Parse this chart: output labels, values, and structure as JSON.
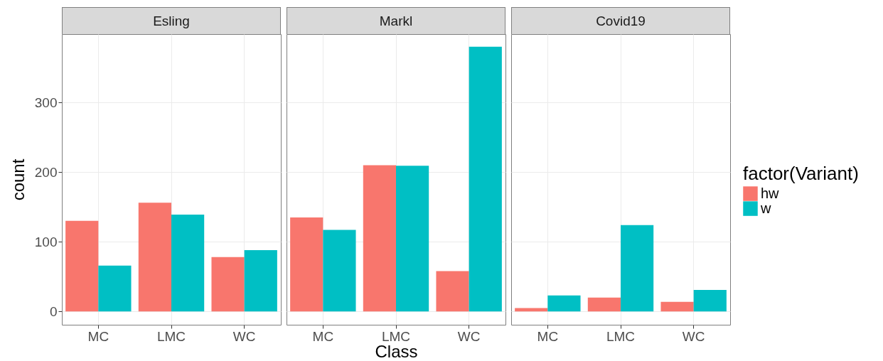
{
  "chart_data": [
    {
      "type": "bar",
      "title": "Esling",
      "ylabel": "count",
      "categories": [
        "MC",
        "LMC",
        "WC"
      ],
      "series": [
        {
          "color": "#f8766d",
          "values": [
            130,
            156,
            78
          ]
        },
        {
          "color": "#00bfc4",
          "values": [
            66,
            139,
            88
          ]
        }
      ],
      "ylim": [
        -19,
        398
      ],
      "yticks": [
        0,
        100,
        200,
        300
      ],
      "grid": true
    },
    {
      "type": "bar",
      "title": "Markl",
      "xlabel": "Class",
      "categories": [
        "MC",
        "LMC",
        "WC"
      ],
      "series": [
        {
          "color": "#f8766d",
          "values": [
            135,
            210,
            58
          ]
        },
        {
          "color": "#00bfc4",
          "values": [
            117,
            209,
            380
          ]
        }
      ],
      "ylim": [
        -19,
        398
      ],
      "yticks": [
        0,
        100,
        200,
        300
      ],
      "grid": true,
      "tick_labels": "x"
    },
    {
      "type": "bar",
      "title": "Covid19",
      "legend_title": "factor(Variant)",
      "legend": "right",
      "categories": [
        "MC",
        "LMC",
        "WC"
      ],
      "series": [
        {
          "name": "hw",
          "color": "#f8766d",
          "values": [
            5,
            20,
            14
          ]
        },
        {
          "name": "w",
          "color": "#00bfc4",
          "values": [
            23,
            124,
            31
          ]
        }
      ],
      "ylim": [
        -19,
        398
      ],
      "yticks": [
        0,
        100,
        200,
        300
      ],
      "grid": true,
      "tick_labels": "x"
    }
  ]
}
